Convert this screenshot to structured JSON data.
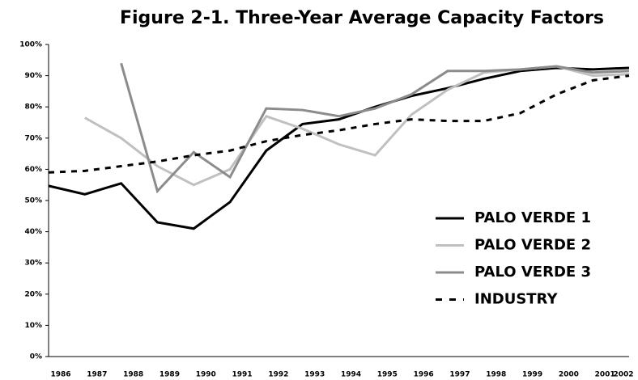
{
  "chart_data": {
    "type": "line",
    "title": "Figure 2-1. Three-Year Average Capacity Factors",
    "categories": [
      "1986",
      "1987",
      "1988",
      "1989",
      "1990",
      "1991",
      "1992",
      "1993",
      "1994",
      "1995",
      "1996",
      "1997",
      "1998",
      "1999",
      "2000",
      "2001",
      "2002"
    ],
    "series": [
      {
        "name": "PALO VERDE 1",
        "color": "#000000",
        "style": "solid",
        "values": [
          54.7,
          52,
          55.5,
          43,
          41,
          49.5,
          66,
          74.5,
          76,
          80,
          83.5,
          86,
          89,
          91.5,
          92.5,
          92,
          92.5
        ]
      },
      {
        "name": "PALO VERDE 2",
        "color": "#c0c0c0",
        "style": "solid",
        "values": [
          null,
          76.5,
          70,
          61,
          55,
          60,
          77,
          73,
          68,
          64.5,
          77.5,
          85.5,
          91,
          92,
          93,
          90,
          90.5
        ]
      },
      {
        "name": "PALO VERDE 3",
        "color": "#8c8c8c",
        "style": "solid",
        "values": [
          null,
          null,
          94,
          53,
          65.5,
          57.5,
          79.5,
          79,
          77,
          79.5,
          84,
          91.5,
          91.5,
          92,
          93,
          91,
          91.5
        ]
      },
      {
        "name": "INDUSTRY",
        "color": "#000000",
        "style": "dashed",
        "values": [
          59,
          59.5,
          61,
          62.5,
          64.5,
          66,
          69,
          71,
          72.5,
          74.5,
          76,
          75.5,
          75.5,
          78,
          84,
          88.5,
          90
        ]
      }
    ],
    "ylim": [
      0,
      100
    ],
    "yticks": [
      {
        "value": 0,
        "label": "0%"
      },
      {
        "value": 10,
        "label": "10%"
      },
      {
        "value": 20,
        "label": "20%"
      },
      {
        "value": 30,
        "label": "30%"
      },
      {
        "value": 40,
        "label": "40%"
      },
      {
        "value": 50,
        "label": "50%"
      },
      {
        "value": 60,
        "label": "60%"
      },
      {
        "value": 70,
        "label": "70%"
      },
      {
        "value": 80,
        "label": "80%"
      },
      {
        "value": 90,
        "label": "90%"
      },
      {
        "value": 100,
        "label": "100%"
      }
    ],
    "grid": false,
    "legend": "right"
  }
}
